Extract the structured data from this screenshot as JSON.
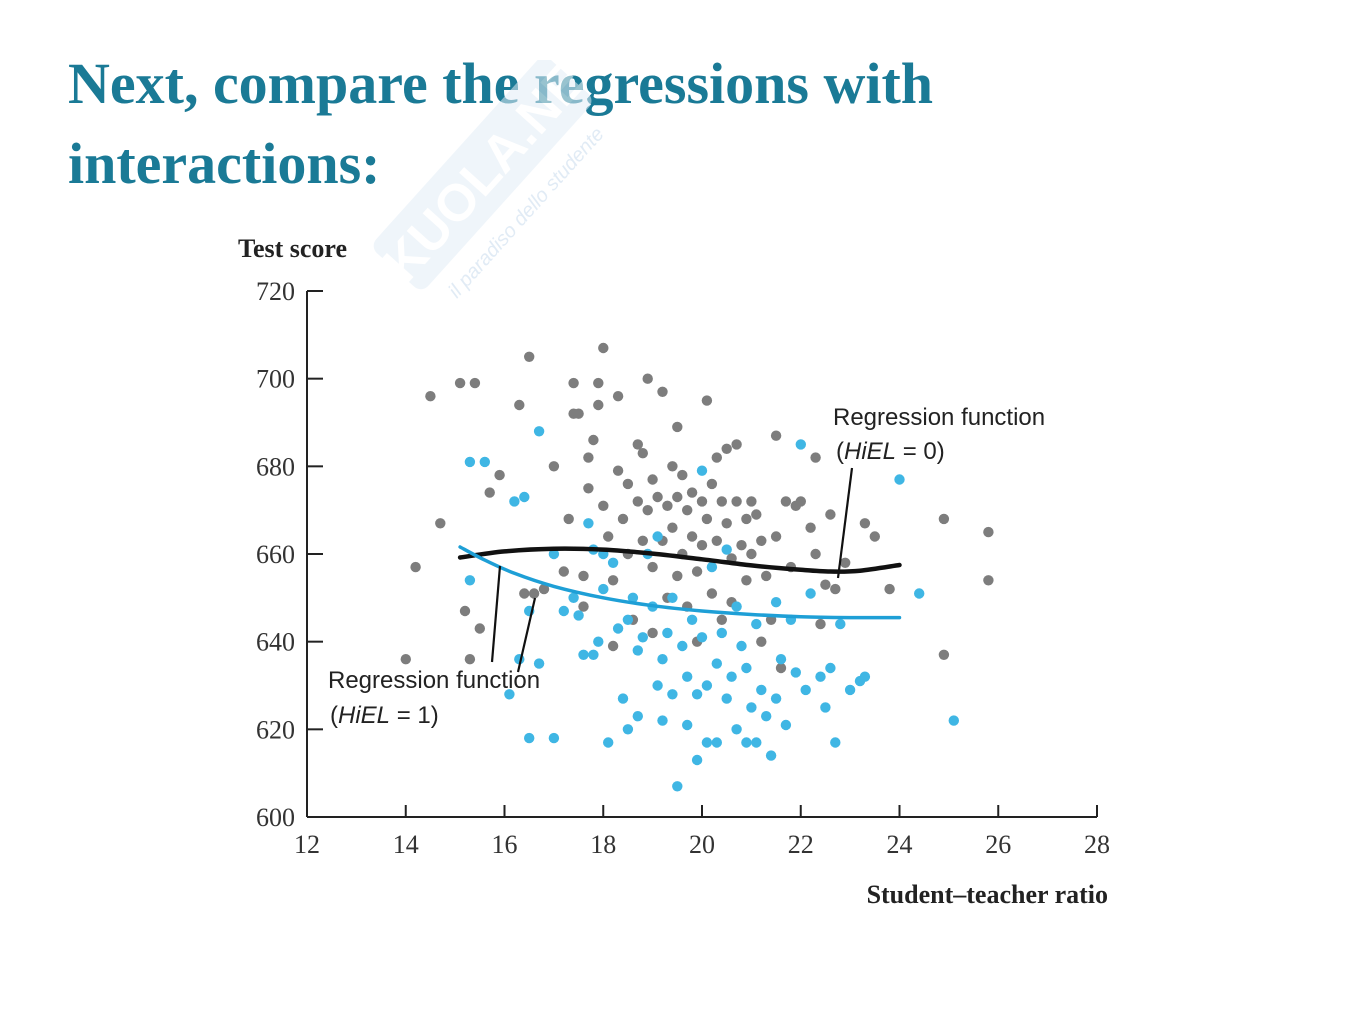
{
  "slide": {
    "title_line1": "Next, compare the regressions with",
    "title_line2": "interactions:",
    "title_color": "#1a7a96"
  },
  "watermark": {
    "brand": "SKUOLA.NET",
    "tagline": "il paradiso dello studente",
    "color": "#d6e6f3"
  },
  "chart_data": {
    "type": "scatter",
    "title": "",
    "xlabel": "Student–teacher ratio",
    "ylabel": "Test score",
    "xlim": [
      12,
      28
    ],
    "ylim": [
      600,
      720
    ],
    "xticks": [
      12,
      14,
      16,
      18,
      20,
      22,
      24,
      26,
      28
    ],
    "yticks": [
      600,
      620,
      640,
      660,
      680,
      700,
      720
    ],
    "grid": false,
    "series": [
      {
        "color": "#7d7d7d",
        "points": [
          [
            14.0,
            636
          ],
          [
            14.2,
            657
          ],
          [
            14.5,
            696
          ],
          [
            14.7,
            667
          ],
          [
            15.1,
            699
          ],
          [
            15.2,
            647
          ],
          [
            15.3,
            636
          ],
          [
            15.4,
            699
          ],
          [
            15.5,
            643
          ],
          [
            15.7,
            674
          ],
          [
            15.9,
            678
          ],
          [
            16.3,
            694
          ],
          [
            16.4,
            651
          ],
          [
            16.5,
            705
          ],
          [
            16.6,
            651
          ],
          [
            16.8,
            652
          ],
          [
            17.0,
            680
          ],
          [
            17.2,
            656
          ],
          [
            17.3,
            668
          ],
          [
            17.4,
            692
          ],
          [
            17.4,
            699
          ],
          [
            17.5,
            692
          ],
          [
            17.6,
            648
          ],
          [
            17.6,
            655
          ],
          [
            17.7,
            682
          ],
          [
            17.7,
            675
          ],
          [
            17.8,
            686
          ],
          [
            17.9,
            699
          ],
          [
            17.9,
            694
          ],
          [
            18.0,
            707
          ],
          [
            18.0,
            671
          ],
          [
            18.1,
            664
          ],
          [
            18.2,
            654
          ],
          [
            18.2,
            639
          ],
          [
            18.3,
            696
          ],
          [
            18.3,
            679
          ],
          [
            18.4,
            668
          ],
          [
            18.5,
            676
          ],
          [
            18.5,
            660
          ],
          [
            18.6,
            645
          ],
          [
            18.7,
            685
          ],
          [
            18.7,
            672
          ],
          [
            18.8,
            683
          ],
          [
            18.8,
            663
          ],
          [
            18.9,
            700
          ],
          [
            18.9,
            670
          ],
          [
            19.0,
            677
          ],
          [
            19.0,
            657
          ],
          [
            19.0,
            642
          ],
          [
            19.1,
            673
          ],
          [
            19.2,
            697
          ],
          [
            19.2,
            663
          ],
          [
            19.3,
            671
          ],
          [
            19.3,
            650
          ],
          [
            19.4,
            680
          ],
          [
            19.4,
            666
          ],
          [
            19.5,
            689
          ],
          [
            19.5,
            673
          ],
          [
            19.5,
            655
          ],
          [
            19.6,
            678
          ],
          [
            19.6,
            660
          ],
          [
            19.7,
            670
          ],
          [
            19.7,
            648
          ],
          [
            19.8,
            674
          ],
          [
            19.8,
            664
          ],
          [
            19.9,
            656
          ],
          [
            19.9,
            640
          ],
          [
            20.0,
            672
          ],
          [
            20.0,
            662
          ],
          [
            20.1,
            695
          ],
          [
            20.1,
            668
          ],
          [
            20.2,
            676
          ],
          [
            20.2,
            651
          ],
          [
            20.3,
            682
          ],
          [
            20.3,
            663
          ],
          [
            20.4,
            672
          ],
          [
            20.4,
            645
          ],
          [
            20.5,
            684
          ],
          [
            20.5,
            667
          ],
          [
            20.6,
            659
          ],
          [
            20.6,
            649
          ],
          [
            20.7,
            685
          ],
          [
            20.7,
            672
          ],
          [
            20.8,
            662
          ],
          [
            20.9,
            668
          ],
          [
            20.9,
            654
          ],
          [
            21.0,
            672
          ],
          [
            21.0,
            660
          ],
          [
            21.1,
            669
          ],
          [
            21.2,
            663
          ],
          [
            21.2,
            640
          ],
          [
            21.3,
            655
          ],
          [
            21.4,
            645
          ],
          [
            21.5,
            687
          ],
          [
            21.5,
            664
          ],
          [
            21.6,
            634
          ],
          [
            21.7,
            672
          ],
          [
            21.8,
            657
          ],
          [
            21.9,
            671
          ],
          [
            22.0,
            672
          ],
          [
            22.2,
            666
          ],
          [
            22.3,
            660
          ],
          [
            22.3,
            682
          ],
          [
            22.4,
            644
          ],
          [
            22.5,
            653
          ],
          [
            22.6,
            669
          ],
          [
            22.7,
            652
          ],
          [
            22.9,
            658
          ],
          [
            23.3,
            667
          ],
          [
            23.5,
            664
          ],
          [
            23.8,
            652
          ],
          [
            24.9,
            668
          ],
          [
            24.9,
            637
          ],
          [
            25.8,
            665
          ],
          [
            25.8,
            654
          ]
        ]
      },
      {
        "color": "#3fb6e4",
        "points": [
          [
            15.3,
            681
          ],
          [
            15.3,
            654
          ],
          [
            15.6,
            681
          ],
          [
            16.1,
            628
          ],
          [
            16.2,
            672
          ],
          [
            16.3,
            636
          ],
          [
            16.4,
            673
          ],
          [
            16.5,
            618
          ],
          [
            16.5,
            647
          ],
          [
            16.7,
            635
          ],
          [
            16.7,
            688
          ],
          [
            17.0,
            618
          ],
          [
            17.0,
            660
          ],
          [
            17.2,
            647
          ],
          [
            17.4,
            650
          ],
          [
            17.5,
            646
          ],
          [
            17.6,
            637
          ],
          [
            17.7,
            667
          ],
          [
            17.8,
            637
          ],
          [
            17.8,
            661
          ],
          [
            17.9,
            640
          ],
          [
            18.0,
            660
          ],
          [
            18.0,
            652
          ],
          [
            18.1,
            617
          ],
          [
            18.2,
            658
          ],
          [
            18.3,
            643
          ],
          [
            18.4,
            627
          ],
          [
            18.5,
            620
          ],
          [
            18.5,
            645
          ],
          [
            18.6,
            650
          ],
          [
            18.7,
            638
          ],
          [
            18.7,
            623
          ],
          [
            18.8,
            641
          ],
          [
            18.9,
            660
          ],
          [
            19.0,
            648
          ],
          [
            19.1,
            630
          ],
          [
            19.1,
            664
          ],
          [
            19.2,
            636
          ],
          [
            19.2,
            622
          ],
          [
            19.3,
            642
          ],
          [
            19.4,
            628
          ],
          [
            19.4,
            650
          ],
          [
            19.5,
            607
          ],
          [
            19.6,
            639
          ],
          [
            19.7,
            621
          ],
          [
            19.7,
            632
          ],
          [
            19.8,
            645
          ],
          [
            19.9,
            628
          ],
          [
            19.9,
            613
          ],
          [
            20.0,
            641
          ],
          [
            20.0,
            679
          ],
          [
            20.1,
            630
          ],
          [
            20.1,
            617
          ],
          [
            20.2,
            657
          ],
          [
            20.3,
            635
          ],
          [
            20.3,
            617
          ],
          [
            20.4,
            642
          ],
          [
            20.5,
            627
          ],
          [
            20.5,
            661
          ],
          [
            20.6,
            632
          ],
          [
            20.7,
            620
          ],
          [
            20.7,
            648
          ],
          [
            20.8,
            639
          ],
          [
            20.9,
            617
          ],
          [
            20.9,
            634
          ],
          [
            21.0,
            625
          ],
          [
            21.1,
            644
          ],
          [
            21.1,
            617
          ],
          [
            21.2,
            629
          ],
          [
            21.3,
            623
          ],
          [
            21.4,
            614
          ],
          [
            21.5,
            649
          ],
          [
            21.5,
            627
          ],
          [
            21.6,
            636
          ],
          [
            21.7,
            621
          ],
          [
            21.8,
            645
          ],
          [
            21.9,
            633
          ],
          [
            22.0,
            685
          ],
          [
            22.1,
            629
          ],
          [
            22.2,
            651
          ],
          [
            22.4,
            632
          ],
          [
            22.5,
            625
          ],
          [
            22.6,
            634
          ],
          [
            22.7,
            617
          ],
          [
            22.8,
            644
          ],
          [
            23.0,
            629
          ],
          [
            23.2,
            631
          ],
          [
            23.3,
            632
          ],
          [
            24.0,
            677
          ],
          [
            24.4,
            651
          ],
          [
            25.1,
            622
          ]
        ]
      }
    ],
    "curves": [
      {
        "color": "#111111",
        "points": [
          [
            15.1,
            659.2
          ],
          [
            16.0,
            660.6
          ],
          [
            17.0,
            661.2
          ],
          [
            18.0,
            661.0
          ],
          [
            19.0,
            660.1
          ],
          [
            20.0,
            658.8
          ],
          [
            21.0,
            657.4
          ],
          [
            22.0,
            656.4
          ],
          [
            22.6,
            656.0
          ],
          [
            23.2,
            656.2
          ],
          [
            24.0,
            657.5
          ]
        ]
      },
      {
        "color": "#1e9fd6",
        "points": [
          [
            15.1,
            661.6
          ],
          [
            15.6,
            658.6
          ],
          [
            16.2,
            655.6
          ],
          [
            17.0,
            652.6
          ],
          [
            18.0,
            650.0
          ],
          [
            19.0,
            648.2
          ],
          [
            20.0,
            647.0
          ],
          [
            21.0,
            646.2
          ],
          [
            22.0,
            645.7
          ],
          [
            23.0,
            645.5
          ],
          [
            24.0,
            645.5
          ]
        ]
      }
    ],
    "annotations": [
      {
        "line1": "Regression function",
        "line2_var": "HiEL",
        "line2_rest": " = 0)",
        "line2_open": "("
      },
      {
        "line1": "Regression function",
        "line2_var": "HiEL",
        "line2_rest": " = 1)",
        "line2_open": "("
      }
    ]
  }
}
